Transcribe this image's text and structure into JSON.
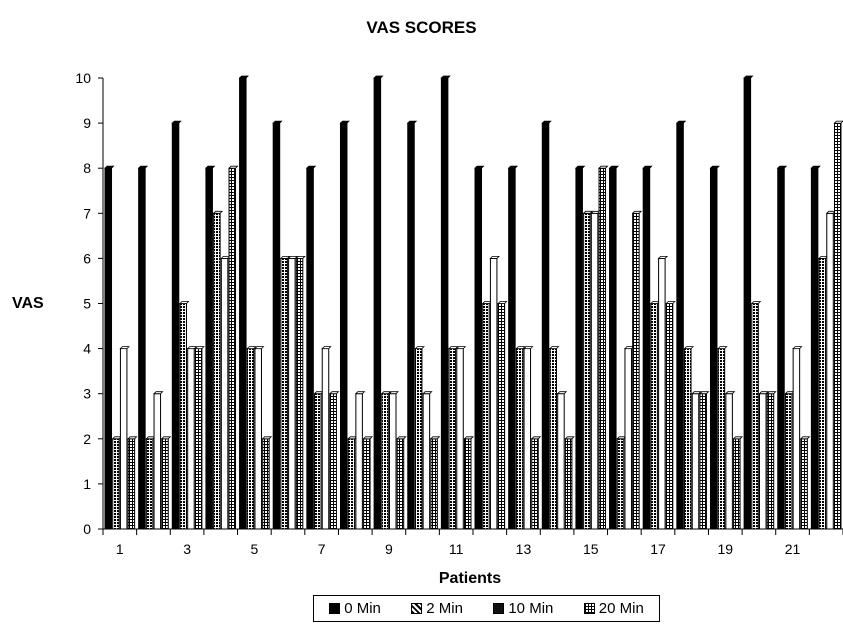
{
  "chart_data": {
    "type": "bar",
    "title": "VAS SCORES",
    "xlabel": "Patients",
    "ylabel": "VAS",
    "ylim": [
      0,
      10
    ],
    "yticks": [
      0,
      1,
      2,
      3,
      4,
      5,
      6,
      7,
      8,
      9,
      10
    ],
    "categories": [
      "1",
      "2",
      "3",
      "4",
      "5",
      "6",
      "7",
      "8",
      "9",
      "10",
      "11",
      "12",
      "13",
      "14",
      "15",
      "16",
      "17",
      "18",
      "19",
      "20",
      "21",
      "22"
    ],
    "xtick_labels": [
      "1",
      "",
      "3",
      "",
      "5",
      "",
      "7",
      "",
      "9",
      "",
      "11",
      "",
      "13",
      "",
      "15",
      "",
      "17",
      "",
      "19",
      "",
      "21",
      ""
    ],
    "series": [
      {
        "name": "0 Min",
        "values": [
          8,
          8,
          9,
          8,
          10,
          9,
          8,
          9,
          10,
          9,
          10,
          8,
          8,
          9,
          8,
          8,
          8,
          9,
          8,
          10,
          8,
          8
        ]
      },
      {
        "name": "2 Min",
        "values": [
          2,
          2,
          5,
          7,
          4,
          6,
          3,
          2,
          3,
          4,
          4,
          5,
          4,
          4,
          7,
          2,
          5,
          4,
          4,
          5,
          3,
          6
        ]
      },
      {
        "name": "10 Min",
        "values": [
          4,
          3,
          4,
          6,
          4,
          6,
          4,
          3,
          3,
          3,
          4,
          6,
          4,
          3,
          7,
          4,
          6,
          3,
          3,
          3,
          4,
          7
        ]
      },
      {
        "name": "20 Min",
        "values": [
          2,
          2,
          4,
          8,
          2,
          6,
          3,
          2,
          2,
          2,
          2,
          5,
          2,
          2,
          8,
          7,
          5,
          3,
          2,
          3,
          2,
          9
        ]
      }
    ],
    "legend_position": "bottom",
    "grid": false,
    "colors": [
      "#000000",
      "#3a3a3a",
      "#ffffff",
      "#dddddd"
    ]
  }
}
